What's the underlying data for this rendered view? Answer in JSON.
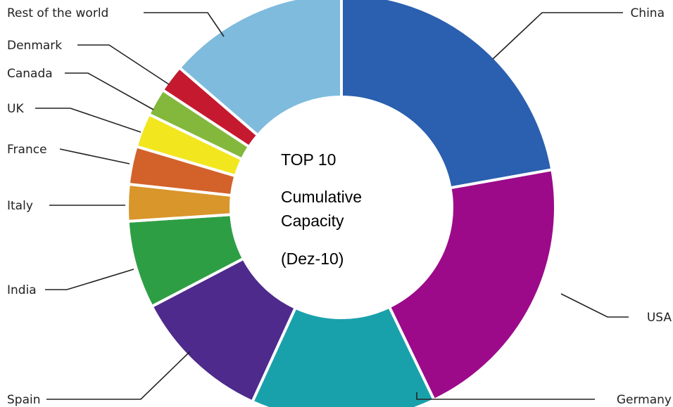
{
  "chart_data": {
    "type": "pie",
    "variant": "donut",
    "center_text": [
      "TOP 10",
      "Cumulative",
      "Capacity",
      "(Dez-10)"
    ],
    "start_angle_deg": 0,
    "direction": "clockwise",
    "slices": [
      {
        "label": "China",
        "value": 22.4,
        "color": "#2b5faf"
      },
      {
        "label": "USA",
        "value": 20.9,
        "color": "#9c0a8a"
      },
      {
        "label": "Germany",
        "value": 14.1,
        "color": "#19a1ab"
      },
      {
        "label": "Spain",
        "value": 10.6,
        "color": "#4d2a8c"
      },
      {
        "label": "India",
        "value": 6.7,
        "color": "#2e9e45"
      },
      {
        "label": "Italy",
        "value": 2.8,
        "color": "#d9962a"
      },
      {
        "label": "France",
        "value": 2.9,
        "color": "#d2622a"
      },
      {
        "label": "UK",
        "value": 2.6,
        "color": "#f2e61f"
      },
      {
        "label": "Canada",
        "value": 2.1,
        "color": "#83b83d"
      },
      {
        "label": "Denmark",
        "value": 2.1,
        "color": "#c4192f"
      },
      {
        "label": "Rest of the world",
        "value": 13.8,
        "color": "#7fbbdd"
      }
    ]
  }
}
